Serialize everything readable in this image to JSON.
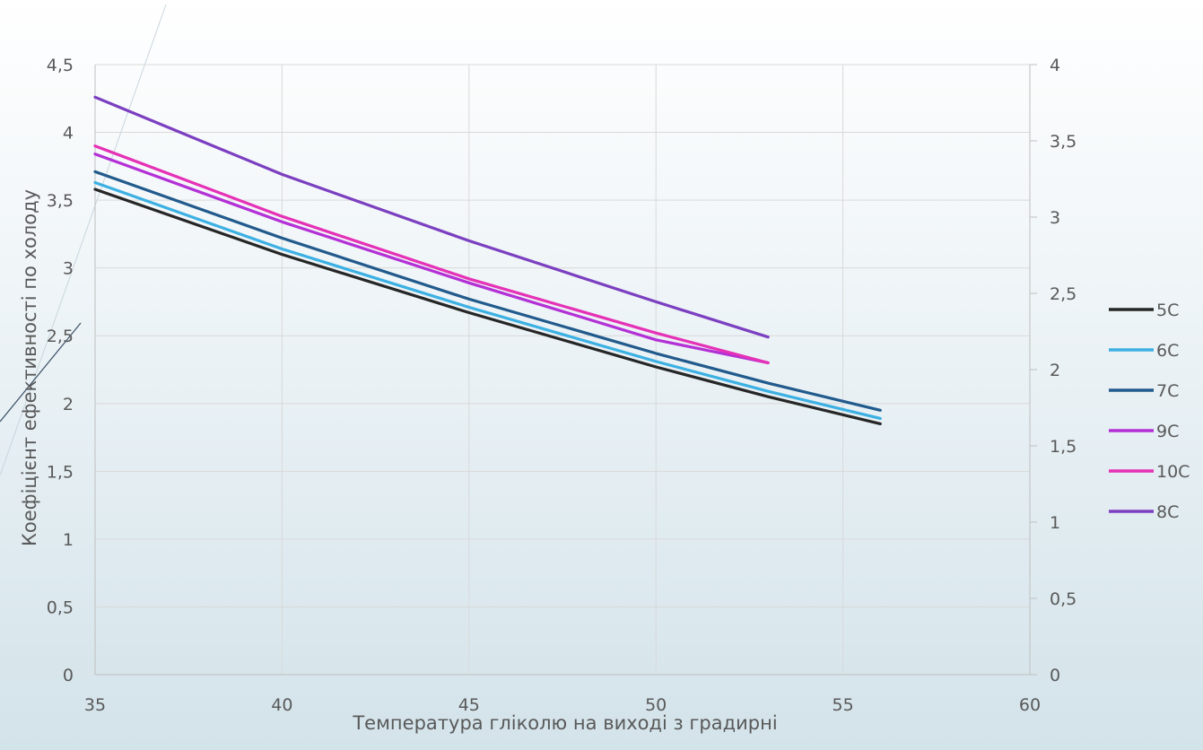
{
  "chart_data": {
    "type": "line",
    "xlabel": "Температура гліколю на виході з градирні",
    "ylabel": "Коефіцієнт ефективності по холоду",
    "x_ticks": [
      "35",
      "40",
      "45",
      "50",
      "55",
      "60"
    ],
    "y_ticks": [
      "0",
      "0,5",
      "1",
      "1,5",
      "2",
      "2,5",
      "3",
      "3,5",
      "4",
      "4,5"
    ],
    "y2_ticks": [
      "0",
      "0,5",
      "1",
      "1,5",
      "2",
      "2,5",
      "3",
      "3,5",
      "4"
    ],
    "xlim": [
      35,
      60
    ],
    "ylim": [
      0,
      4.5
    ],
    "y2lim": [
      0,
      4
    ],
    "grid": true,
    "legend_position": "right",
    "series": [
      {
        "name": "5C",
        "color": "#262626",
        "points": [
          [
            35,
            3.58
          ],
          [
            40,
            3.1
          ],
          [
            45,
            2.67
          ],
          [
            50,
            2.27
          ],
          [
            53,
            2.05
          ],
          [
            56,
            1.85
          ]
        ]
      },
      {
        "name": "6C",
        "color": "#3cb0e2",
        "points": [
          [
            35,
            3.63
          ],
          [
            40,
            3.14
          ],
          [
            45,
            2.71
          ],
          [
            50,
            2.31
          ],
          [
            53,
            2.09
          ],
          [
            56,
            1.89
          ]
        ]
      },
      {
        "name": "7C",
        "color": "#215a8c",
        "points": [
          [
            35,
            3.71
          ],
          [
            40,
            3.22
          ],
          [
            45,
            2.77
          ],
          [
            50,
            2.37
          ],
          [
            53,
            2.15
          ],
          [
            56,
            1.95
          ]
        ]
      },
      {
        "name": "9C",
        "color": "#b330d6",
        "points": [
          [
            35,
            3.84
          ],
          [
            40,
            3.34
          ],
          [
            45,
            2.89
          ],
          [
            50,
            2.47
          ],
          [
            53,
            2.3
          ]
        ]
      },
      {
        "name": "10C",
        "color": "#e531b6",
        "points": [
          [
            35,
            3.9
          ],
          [
            40,
            3.38
          ],
          [
            45,
            2.92
          ],
          [
            50,
            2.52
          ],
          [
            53,
            2.3
          ]
        ]
      },
      {
        "name": "8C",
        "color": "#7b3fc0",
        "points": [
          [
            35,
            4.26
          ],
          [
            40,
            3.69
          ],
          [
            45,
            3.2
          ],
          [
            50,
            2.75
          ],
          [
            53,
            2.49
          ]
        ]
      }
    ]
  }
}
